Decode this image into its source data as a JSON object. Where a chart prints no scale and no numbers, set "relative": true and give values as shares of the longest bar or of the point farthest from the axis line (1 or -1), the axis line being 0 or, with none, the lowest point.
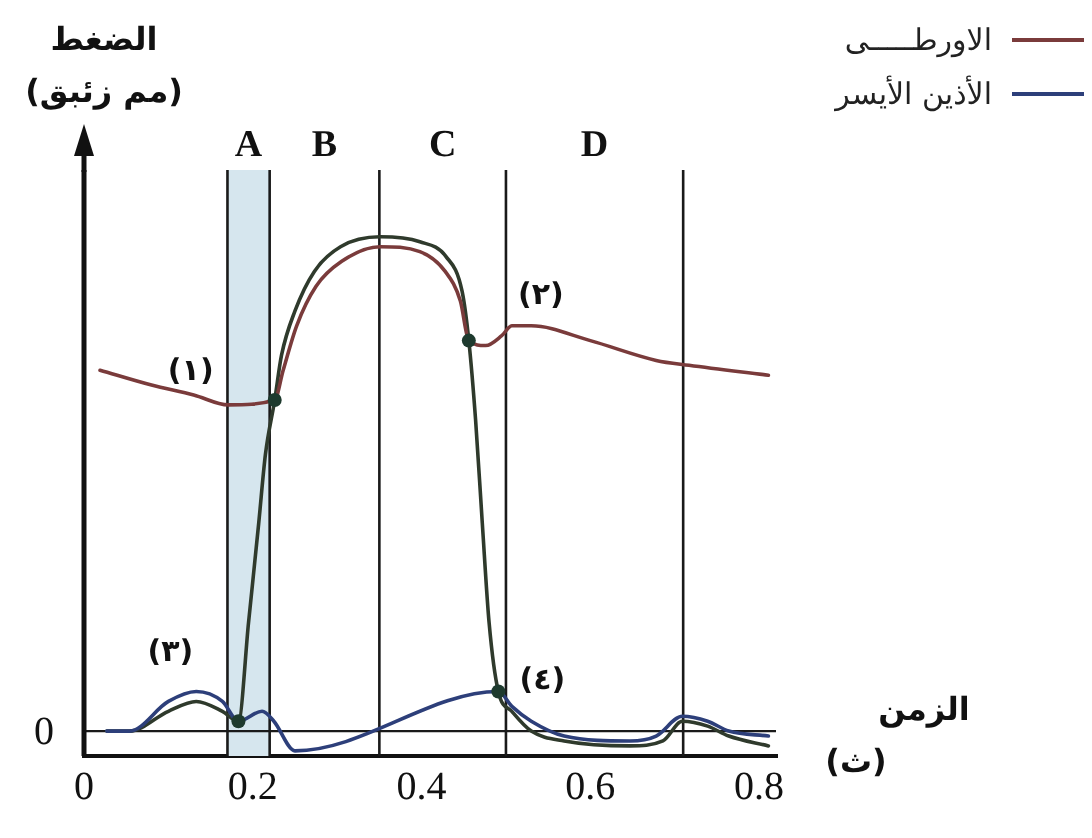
{
  "chart_data": {
    "type": "line",
    "relative": true,
    "xlabel": "الزمن\n(ث)",
    "ylabel": "الضغط\n(مم زئبق)",
    "xlim": [
      0,
      0.82
    ],
    "xticks": [
      0,
      0.2,
      0.4,
      0.6,
      0.8
    ],
    "series": [
      {
        "name": "الاورطـــــى",
        "color": "#7a3b3b",
        "x": [
          0.019,
          0.08,
          0.13,
          0.171,
          0.226,
          0.236,
          0.252,
          0.275,
          0.305,
          0.351,
          0.398,
          0.428,
          0.446,
          0.456,
          0.476,
          0.495,
          0.507,
          0.53,
          0.6,
          0.678,
          0.717,
          0.811
        ],
        "values": [
          0.73,
          0.7,
          0.68,
          0.66,
          0.67,
          0.73,
          0.82,
          0.9,
          0.95,
          0.98,
          0.97,
          0.93,
          0.87,
          0.79,
          0.78,
          0.8,
          0.82,
          0.82,
          0.79,
          0.75,
          0.74,
          0.72
        ]
      },
      {
        "name": "الأذين الأيسر",
        "color": "#2d3f7a",
        "x": [
          0.027,
          0.054,
          0.1,
          0.133,
          0.164,
          0.183,
          0.211,
          0.225,
          0.25,
          0.491,
          0.507,
          0.53,
          0.569,
          0.647,
          0.678,
          0.709,
          0.739,
          0.764,
          0.811
        ],
        "values": [
          0,
          0,
          0.06,
          0.08,
          0.06,
          0.02,
          0.04,
          0.02,
          -0.04,
          0.08,
          0.05,
          0.02,
          -0.01,
          -0.02,
          -0.01,
          0.03,
          0.02,
          0,
          -0.01
        ]
      },
      {
        "color": "#2f3a2c",
        "x": [
          0.027,
          0.054,
          0.1,
          0.133,
          0.164,
          0.183,
          0.195,
          0.207,
          0.215,
          0.226,
          0.234,
          0.25,
          0.273,
          0.304,
          0.351,
          0.398,
          0.429,
          0.448,
          0.456,
          0.464,
          0.472,
          0.48,
          0.491,
          0.507,
          0.53,
          0.569,
          0.647,
          0.686,
          0.709,
          0.739,
          0.764,
          0.811
        ],
        "values": [
          0,
          0,
          0.04,
          0.06,
          0.04,
          0.02,
          0.22,
          0.42,
          0.56,
          0.67,
          0.76,
          0.85,
          0.93,
          0.98,
          1,
          0.99,
          0.96,
          0.89,
          0.79,
          0.63,
          0.42,
          0.22,
          0.08,
          0.04,
          0,
          -0.02,
          -0.03,
          -0.02,
          0.02,
          0.01,
          -0.01,
          -0.03
        ]
      }
    ],
    "bands": [
      {
        "axis": "x",
        "from": 0.17,
        "to": 0.22,
        "label": "A",
        "color": "#d6e6ee"
      }
    ],
    "ref_lines": [
      {
        "axis": "y",
        "value": 0,
        "label": "0"
      },
      {
        "axis": "x",
        "value": 0.17
      },
      {
        "axis": "x",
        "value": 0.22
      },
      {
        "axis": "x",
        "value": 0.35
      },
      {
        "axis": "x",
        "value": 0.5
      },
      {
        "axis": "x",
        "value": 0.71
      }
    ],
    "annotations": [
      {
        "text": "(١)",
        "x": 0.226,
        "y": 0.67
      },
      {
        "text": "(٢)",
        "x": 0.456,
        "y": 0.79
      },
      {
        "text": "(٣)",
        "x": 0.183,
        "y": 0.02
      },
      {
        "text": "(٤)",
        "x": 0.491,
        "y": 0.08
      },
      "B",
      "C",
      "D"
    ],
    "legend": "top right"
  }
}
